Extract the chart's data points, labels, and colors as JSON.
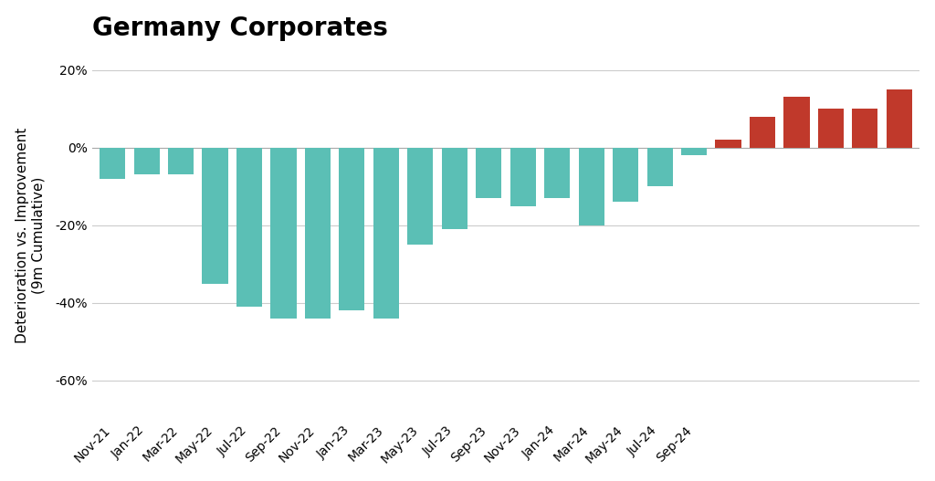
{
  "title": "Germany Corporates",
  "ylabel": "Deterioration vs. Improvement\n(9m Cumulative)",
  "bar_values": [
    -8,
    -7,
    -7,
    -35,
    -41,
    -44,
    -44,
    -42,
    -44,
    -25,
    -21,
    -13,
    -15,
    -13,
    -20,
    -14,
    -10,
    -2,
    2,
    8,
    13,
    10,
    10,
    15
  ],
  "x_labels": [
    "Nov-21",
    "Jan-22",
    "Mar-22",
    "May-22",
    "Jul-22",
    "Sep-22",
    "Nov-22",
    "Jan-23",
    "Mar-23",
    "May-23",
    "Jul-23",
    "Sep-23",
    "Nov-23",
    "Jan-24",
    "Mar-24",
    "May-24",
    "Jul-24",
    "Sep-24",
    "",
    "",
    "",
    "",
    "",
    ""
  ],
  "x_labels_shown": [
    "Nov-21",
    "Jan-22",
    "Mar-22",
    "May-22",
    "Jul-22",
    "Sep-22",
    "Nov-22",
    "Jan-23",
    "Mar-23",
    "May-23",
    "Jul-23",
    "Sep-23",
    "Nov-23",
    "Jan-24",
    "Mar-24",
    "May-24",
    "Jul-24",
    "Sep-24"
  ],
  "teal_color": "#5bbfb5",
  "red_color": "#c0392b",
  "background_color": "#ffffff",
  "grid_color": "#cccccc",
  "ylim": [
    -70,
    25
  ],
  "yticks": [
    -60,
    -40,
    -20,
    0,
    20
  ],
  "title_fontsize": 20,
  "axis_label_fontsize": 11,
  "tick_fontsize": 10
}
